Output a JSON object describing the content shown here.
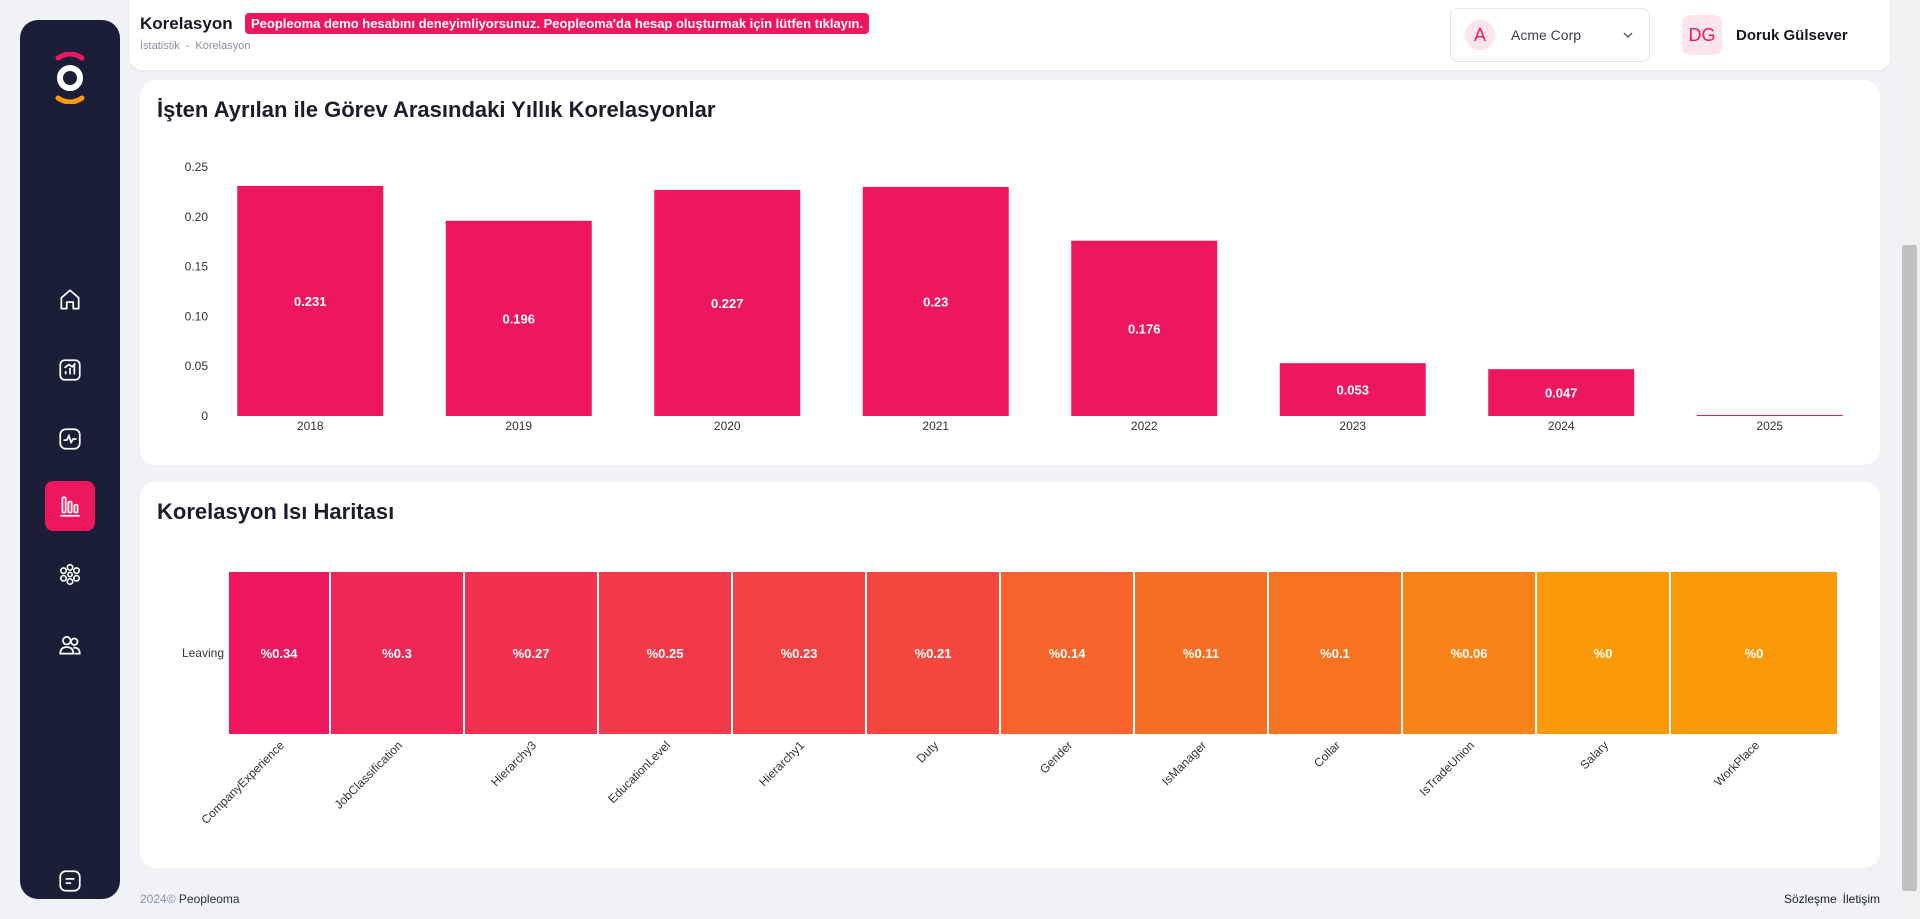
{
  "header": {
    "title": "Korelasyon",
    "demo_banner": "Peopleoma demo hesabını deneyimliyorsunuz. Peopleoma'da hesap oluşturmak için lütfen tıklayın.",
    "breadcrumb": [
      "İstatistik",
      "-",
      "Korelasyon"
    ],
    "company": {
      "initial": "A",
      "name": "Acme Corp"
    },
    "user": {
      "initials": "DG",
      "name": "Doruk Gülsever"
    }
  },
  "sidebar": {
    "items": [
      {
        "name": "home",
        "icon": "home-icon",
        "active": false
      },
      {
        "name": "analytics",
        "icon": "chart-box-icon",
        "active": false
      },
      {
        "name": "activity",
        "icon": "pulse-icon",
        "active": false
      },
      {
        "name": "statistics",
        "icon": "bar-chart-icon",
        "active": true
      },
      {
        "name": "organization",
        "icon": "network-icon",
        "active": false
      },
      {
        "name": "users",
        "icon": "users-icon",
        "active": false
      },
      {
        "name": "notes",
        "icon": "notes-icon",
        "active": false
      }
    ],
    "accent": "#ef1660"
  },
  "chart_data": [
    {
      "type": "bar",
      "title": "İşten Ayrılan ile Görev Arasındaki Yıllık Korelasyonlar",
      "categories": [
        "2018",
        "2019",
        "2020",
        "2021",
        "2022",
        "2023",
        "2024",
        "2025"
      ],
      "values": [
        0.231,
        0.196,
        0.227,
        0.23,
        0.176,
        0.053,
        0.047,
        0
      ],
      "data_labels": [
        "0.231",
        "0.196",
        "0.227",
        "0.23",
        "0.176",
        "0.053",
        "0.047",
        ""
      ],
      "yticks": [
        "0",
        "0.05",
        "0.10",
        "0.15",
        "0.20",
        "0.25"
      ],
      "ylim": [
        0,
        0.25
      ],
      "color": "#ef1660",
      "xlabel": "",
      "ylabel": ""
    },
    {
      "type": "heatmap",
      "title": "Korelasyon Isı Haritası",
      "row_labels": [
        "Leaving"
      ],
      "columns": [
        "CompanyExperience",
        "JobClassification",
        "Hierarchy3",
        "EducationLevel",
        "Hierarchy1",
        "Duty",
        "Gender",
        "IsManager",
        "Collar",
        "IsTradeUnion",
        "Salary",
        "WorkPlace"
      ],
      "values": [
        [
          0.34,
          0.3,
          0.27,
          0.25,
          0.23,
          0.21,
          0.14,
          0.11,
          0.1,
          0.06,
          0,
          0
        ]
      ],
      "cell_labels": [
        "%0.34",
        "%0.3",
        "%0.27",
        "%0.25",
        "%0.23",
        "%0.21",
        "%0.14",
        "%0.11",
        "%0.1",
        "%0.06",
        "%0",
        "%0"
      ],
      "color_low": "#fb9a06",
      "color_high": "#ef1660"
    }
  ],
  "footer": {
    "year": "2024",
    "copyright": "©",
    "brand": "Peopleoma",
    "links": [
      "Sözleşme",
      "İletişim"
    ]
  }
}
